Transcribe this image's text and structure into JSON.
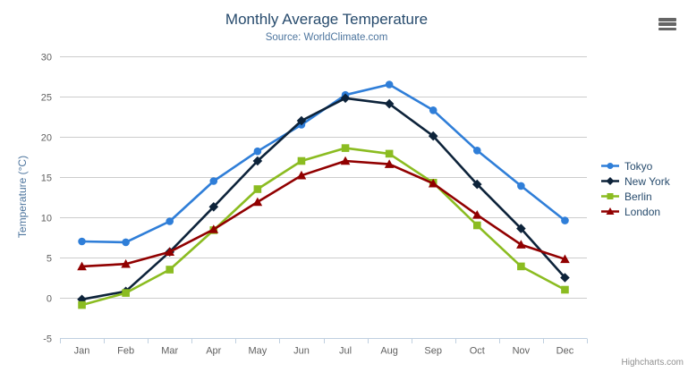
{
  "chart": {
    "credits": "Highcharts.com",
    "export_menu_icon": "hamburger-icon",
    "background": "#ffffff",
    "colors": {
      "title": "#274b6d",
      "subtitle": "#4d759e",
      "axis_title": "#4d759e",
      "tick_label": "#606060",
      "grid_line": "#cccccc",
      "axis_line": "#c0d0e0",
      "legend_text": "#274b6d",
      "credits_text": "#909090",
      "menu_icon": "#666666"
    }
  },
  "chart_data": {
    "type": "line",
    "title": "Monthly Average Temperature",
    "subtitle": "Source: WorldClimate.com",
    "categories": [
      "Jan",
      "Feb",
      "Mar",
      "Apr",
      "May",
      "Jun",
      "Jul",
      "Aug",
      "Sep",
      "Oct",
      "Nov",
      "Dec"
    ],
    "xlabel": "",
    "ylabel": "Temperature (°C)",
    "ylim": [
      -5,
      30
    ],
    "yticks": [
      30,
      25,
      20,
      15,
      10,
      5,
      0,
      -5
    ],
    "grid": true,
    "legend_position": "right",
    "series": [
      {
        "name": "Tokyo",
        "color": "#2f7ed8",
        "marker": "circle",
        "values": [
          7.0,
          6.9,
          9.5,
          14.5,
          18.2,
          21.5,
          25.2,
          26.5,
          23.3,
          18.3,
          13.9,
          9.6
        ]
      },
      {
        "name": "New York",
        "color": "#0d233a",
        "marker": "diamond",
        "values": [
          -0.2,
          0.8,
          5.7,
          11.3,
          17.0,
          22.0,
          24.8,
          24.1,
          20.1,
          14.1,
          8.6,
          2.5
        ]
      },
      {
        "name": "Berlin",
        "color": "#8bbc21",
        "marker": "square",
        "values": [
          -0.9,
          0.6,
          3.5,
          8.4,
          13.5,
          17.0,
          18.6,
          17.9,
          14.3,
          9.0,
          3.9,
          1.0
        ]
      },
      {
        "name": "London",
        "color": "#910000",
        "marker": "triangle",
        "values": [
          3.9,
          4.2,
          5.7,
          8.5,
          11.9,
          15.2,
          17.0,
          16.6,
          14.2,
          10.3,
          6.6,
          4.8
        ]
      }
    ]
  }
}
